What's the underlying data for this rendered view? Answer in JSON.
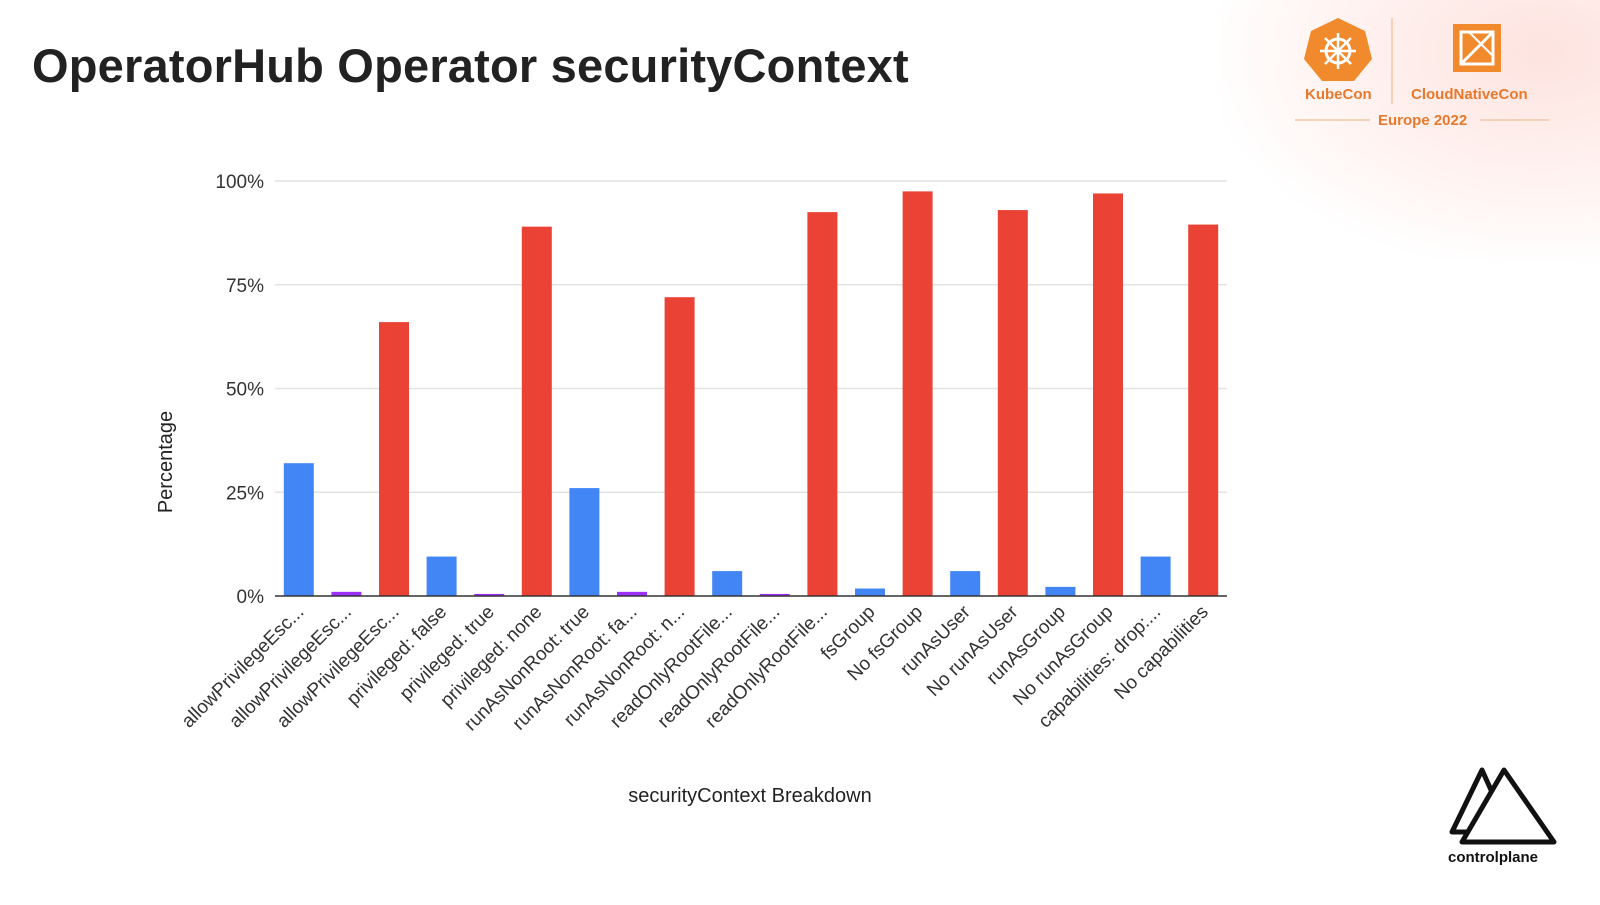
{
  "slide": {
    "title": "OperatorHub Operator securityContext"
  },
  "branding": {
    "event_left": "KubeCon",
    "event_right": "CloudNativeCon",
    "event_sub": "Europe 2022",
    "company": "controlplane",
    "kubecon_icon": "helm-wheel-icon",
    "cnc_icon": "cloud-native-icon",
    "company_icon": "mountain-triangles-icon",
    "accent_color": "#e8792c"
  },
  "chart_data": {
    "type": "bar",
    "xlabel": "securityContext Breakdown",
    "ylabel": "Percentage",
    "ylim": [
      0,
      100
    ],
    "y_ticks": [
      "0%",
      "25%",
      "50%",
      "75%",
      "100%"
    ],
    "grid": true,
    "legend": "none",
    "categories": [
      "allowPrivilegeEsc...",
      "allowPrivilegeEsc...",
      "allowPrivilegeEsc...",
      "privileged: false",
      "privileged: true",
      "privileged: none",
      "runAsNonRoot: true",
      "runAsNonRoot: fa...",
      "runAsNonRoot: n...",
      "readOnlyRootFile...",
      "readOnlyRootFile...",
      "readOnlyRootFile...",
      "fsGroup",
      "No fsGroup",
      "runAsUser",
      "No runAsUser",
      "runAsGroup",
      "No runAsGroup",
      "capabilities: drop:...",
      "No capabilities"
    ],
    "values": [
      32,
      1,
      66,
      9.5,
      0.5,
      89,
      26,
      1,
      72,
      6,
      0.5,
      92.5,
      1.8,
      97.5,
      6,
      93,
      2.2,
      97,
      9.5,
      89.5
    ],
    "colors": [
      "#4285f4",
      "#9b30ff",
      "#ea4335",
      "#4285f4",
      "#9b30ff",
      "#ea4335",
      "#4285f4",
      "#9b30ff",
      "#ea4335",
      "#4285f4",
      "#9b30ff",
      "#ea4335",
      "#4285f4",
      "#ea4335",
      "#4285f4",
      "#ea4335",
      "#4285f4",
      "#ea4335",
      "#4285f4",
      "#ea4335"
    ]
  }
}
